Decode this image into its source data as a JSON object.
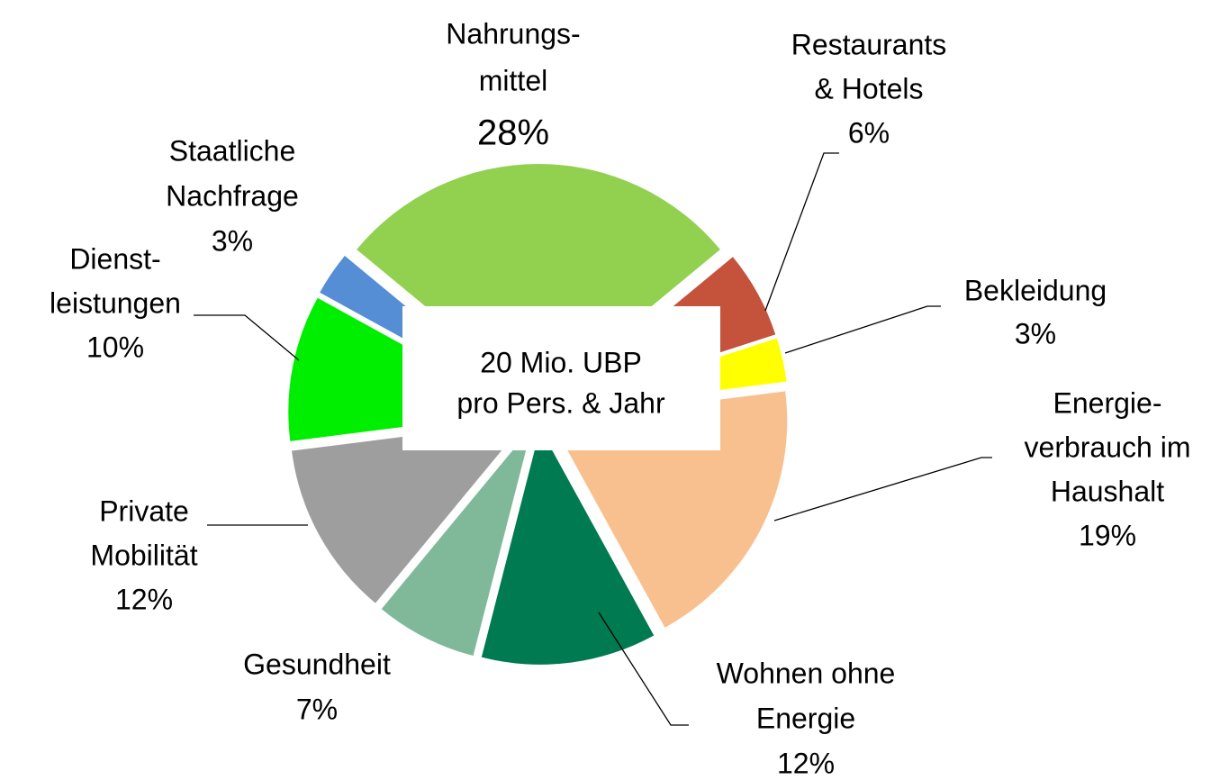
{
  "chart_data": {
    "type": "pie",
    "categories": [
      [
        "Nahrungs-",
        "mittel"
      ],
      [
        "Restaurants",
        "& Hotels"
      ],
      [
        "Bekleidung"
      ],
      [
        "Energie-",
        "verbrauch im",
        "Haushalt"
      ],
      [
        "Wohnen ohne",
        "Energie"
      ],
      [
        "Gesundheit"
      ],
      [
        "Private",
        "Mobilität"
      ],
      [
        "Dienst-",
        "leistungen"
      ],
      [
        "Staatliche",
        "Nachfrage"
      ]
    ],
    "values": [
      28,
      6,
      3,
      19,
      12,
      7,
      12,
      10,
      3
    ],
    "value_labels": [
      "28%",
      "6%",
      "3%",
      "19%",
      "12%",
      "7%",
      "12%",
      "10%",
      "3%"
    ],
    "colors": [
      "#92d050",
      "#c5523a",
      "#ffff00",
      "#f9c08f",
      "#007a50",
      "#80b99a",
      "#9e9e9e",
      "#00ee00",
      "#558ed5"
    ],
    "annotation": [
      "20 Mio. UBP",
      "pro Pers. & Jahr"
    ]
  }
}
